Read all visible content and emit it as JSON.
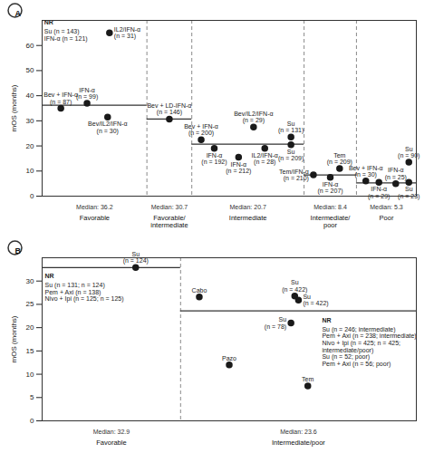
{
  "chart_data": [
    {
      "type": "scatter",
      "panel": "A",
      "y_label": "mOS (months)",
      "color": "#1a1a1a",
      "xlim": [
        0,
        100
      ],
      "ylim": [
        0,
        70
      ],
      "yticks": [
        0,
        10,
        20,
        30,
        40,
        50,
        60
      ],
      "tick_labels": "y",
      "group_boundaries": [
        28,
        40,
        70,
        84
      ],
      "groups": [
        {
          "name": "Favorable",
          "median": 36.2,
          "median_label": "Median: 36.2",
          "nr_note": [
            "NR",
            "Su (n = 143)",
            "IFN-α (n = 121)"
          ]
        },
        {
          "name": "Favorable/intermediate",
          "median": 30.7,
          "median_label": "Median: 30.7"
        },
        {
          "name": "Intermediate",
          "median": 20.7,
          "median_label": "Median: 20.7"
        },
        {
          "name": "Intermediate/poor",
          "median": 8.4,
          "median_label": "Median: 8.4"
        },
        {
          "name": "Poor",
          "median": 5.3,
          "median_label": "Median: 5.3"
        }
      ],
      "points": {
        "x": [
          5,
          12,
          17.5,
          18,
          34,
          42.5,
          46,
          52.5,
          56.5,
          59.5,
          66.5,
          66.5,
          72.5,
          77,
          79.5,
          86.5,
          90,
          94.5,
          98,
          98
        ],
        "values": [
          35,
          37,
          31.5,
          65,
          30.7,
          22.5,
          19,
          15.5,
          27.5,
          19,
          23.5,
          20.5,
          8.5,
          7.5,
          11,
          6,
          5.5,
          5,
          13.5,
          5.5
        ],
        "labels": [
          "Bev + IFN-α (n = 87)",
          "IFN-α (n = 99)",
          "Bev/IL2/IFN-α (n = 30)",
          "IL2/IFN-α (n = 31)",
          "Bev + LD-IFN-α (n = 146)",
          "Bev + IFN-α (n = 200)",
          "IFN-α (n = 192)",
          "IFN-α (n = 212)",
          "Bev/IL2/IFN-α (n = 29)",
          "IL2/IFN-α (n = 28)",
          "Su (n = 131)",
          "Su (n = 209)",
          "Tem/IFN-α (n = 210)",
          "IFN-α (n = 207)",
          "Tem (n = 209)",
          "Bev + IFN-α (n = 30)",
          "IFN-α (n = 29)",
          "IFN-α (n = 25)",
          "Su (n = 90)",
          "Su (n = 23)"
        ]
      }
    },
    {
      "type": "scatter",
      "panel": "B",
      "y_label": "mOS (months)",
      "color": "#1a1a1a",
      "xlim": [
        0,
        100
      ],
      "ylim": [
        0,
        35
      ],
      "yticks": [
        0,
        5,
        10,
        15,
        20,
        25,
        30
      ],
      "tick_labels": "y",
      "group_boundaries": [
        37
      ],
      "groups": [
        {
          "name": "Favorable",
          "median": 32.9,
          "median_label": "Median: 32.9",
          "nr_note": [
            "NR",
            "Su (n = 131; n = 124)",
            "Pem + Axi (n = 138)",
            "Nivo + Ipi (n = 125; n = 125)"
          ]
        },
        {
          "name": "Intermediate/poor",
          "median": 23.6,
          "median_label": "Median: 23.6",
          "nr_note": [
            "NR",
            "Su (n = 246; intermediate)",
            "Pem + Axi (n = 238; intermediate)",
            "Nivo + Ipi (n = 425; n = 425;",
            "intermediate/poor)",
            "Su (n = 52; poor)",
            "Pem + Axi (n = 56; poor)"
          ]
        }
      ],
      "points": {
        "x": [
          25,
          42,
          50,
          67.5,
          68.5,
          66.5,
          71
        ],
        "values": [
          32.9,
          26.6,
          12,
          26.8,
          25.9,
          21,
          7.5
        ],
        "labels": [
          "Su (n = 124)",
          "Cabo",
          "Pazo",
          "Su (n = 422)",
          "Su (n = 422)",
          "Su (n = 78)",
          "Tem"
        ]
      }
    }
  ]
}
